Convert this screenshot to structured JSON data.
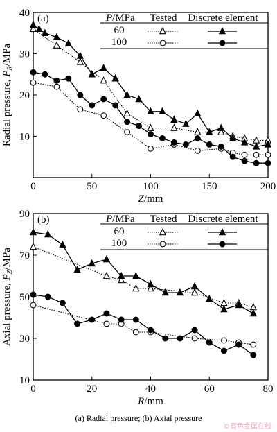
{
  "figure": {
    "caption": "(a) Radial pressure; (b) Axial pressure",
    "watermark": "©有色金属在线"
  },
  "legend_text": {
    "header_param": "P",
    "header_unit": "/MPa",
    "header_tested": "Tested",
    "header_de": "Discrete element",
    "row1": "60",
    "row2": "100"
  },
  "chart_data": [
    {
      "type": "line",
      "panel_label": "(a)",
      "ylabel_main": "Radial pressure, ",
      "ylabel_sym": "P",
      "ylabel_sub": "R",
      "ylabel_unit": "/MPa",
      "xlabel_sym": "Z",
      "xlabel_unit": "/mm",
      "xlim": [
        0,
        200
      ],
      "ylim": [
        0,
        40
      ],
      "xticks": [
        0,
        50,
        100,
        150,
        200
      ],
      "yticks": [
        10,
        20,
        30,
        40
      ],
      "legend_position": "top-right",
      "grid": false,
      "series": [
        {
          "name": "60 Tested",
          "marker": "open-triangle",
          "line": "dotted",
          "x": [
            0,
            20,
            40,
            60,
            80,
            100,
            120,
            140,
            160,
            170,
            180,
            190,
            200
          ],
          "y": [
            36,
            32,
            28,
            23.5,
            15.5,
            12,
            12,
            11,
            11,
            10,
            9.5,
            9,
            9
          ]
        },
        {
          "name": "60 Discrete element",
          "marker": "filled-triangle",
          "line": "solid",
          "x": [
            0,
            5,
            10,
            20,
            30,
            40,
            50,
            60,
            70,
            80,
            90,
            100,
            110,
            120,
            130,
            140,
            150,
            160,
            170,
            180,
            190,
            200
          ],
          "y": [
            37,
            36,
            35,
            34,
            32.5,
            29.5,
            25,
            26.5,
            24,
            20,
            19,
            16,
            16,
            14,
            13,
            15.5,
            11,
            12,
            9.5,
            8.5,
            7.5,
            8
          ]
        },
        {
          "name": "100 Tested",
          "marker": "open-circle",
          "line": "dotted",
          "x": [
            0,
            20,
            40,
            60,
            80,
            100,
            120,
            140,
            160,
            170,
            180,
            190,
            200
          ],
          "y": [
            23,
            22,
            16.5,
            15,
            11,
            7,
            8,
            6.5,
            7,
            6,
            5.5,
            5.5,
            5.5
          ]
        },
        {
          "name": "100 Discrete element",
          "marker": "filled-circle",
          "line": "solid",
          "x": [
            0,
            10,
            20,
            30,
            40,
            50,
            60,
            70,
            80,
            90,
            100,
            110,
            120,
            130,
            140,
            150,
            160,
            170,
            180,
            190,
            200
          ],
          "y": [
            25.5,
            25,
            23.5,
            24,
            20,
            17.5,
            19,
            17.5,
            13.5,
            12.5,
            10.5,
            9.5,
            8.5,
            8,
            9.5,
            8,
            7.5,
            5,
            4,
            3.5,
            3.5
          ]
        }
      ]
    },
    {
      "type": "line",
      "panel_label": "(b)",
      "ylabel_main": "Axial pressure, ",
      "ylabel_sym": "P",
      "ylabel_sub": "Z",
      "ylabel_unit": "/MPa",
      "xlabel_sym": "R",
      "xlabel_unit": "/mm",
      "xlim": [
        0,
        80
      ],
      "ylim": [
        10,
        90
      ],
      "xticks": [
        0,
        20,
        40,
        60,
        80
      ],
      "yticks": [
        10,
        30,
        50,
        70,
        90
      ],
      "legend_position": "top-right",
      "grid": false,
      "series": [
        {
          "name": "60 Tested",
          "marker": "open-triangle",
          "line": "dotted",
          "x": [
            0,
            25,
            30,
            35,
            40,
            55,
            65,
            70,
            75
          ],
          "y": [
            74,
            60,
            58,
            54,
            54,
            52,
            47,
            47,
            45
          ]
        },
        {
          "name": "60 Discrete element",
          "marker": "filled-triangle",
          "line": "solid",
          "x": [
            0,
            5,
            10,
            15,
            20,
            25,
            30,
            35,
            40,
            45,
            50,
            55,
            60,
            65,
            70,
            75
          ],
          "y": [
            81,
            80,
            75,
            63,
            66,
            68,
            60,
            60,
            56,
            52,
            52,
            55,
            49,
            44,
            46,
            42
          ]
        },
        {
          "name": "100 Tested",
          "marker": "open-circle",
          "line": "dotted",
          "x": [
            0,
            25,
            30,
            35,
            40,
            55,
            65,
            70,
            75
          ],
          "y": [
            46,
            37,
            37,
            33,
            33,
            30,
            29,
            28,
            27
          ]
        },
        {
          "name": "100 Discrete element",
          "marker": "filled-circle",
          "line": "solid",
          "x": [
            0,
            5,
            10,
            15,
            20,
            25,
            30,
            35,
            40,
            45,
            50,
            55,
            60,
            65,
            70,
            75
          ],
          "y": [
            51,
            50,
            47,
            37,
            39,
            42,
            39,
            39,
            34,
            30,
            30,
            34,
            28,
            24,
            27,
            22
          ]
        }
      ]
    }
  ]
}
